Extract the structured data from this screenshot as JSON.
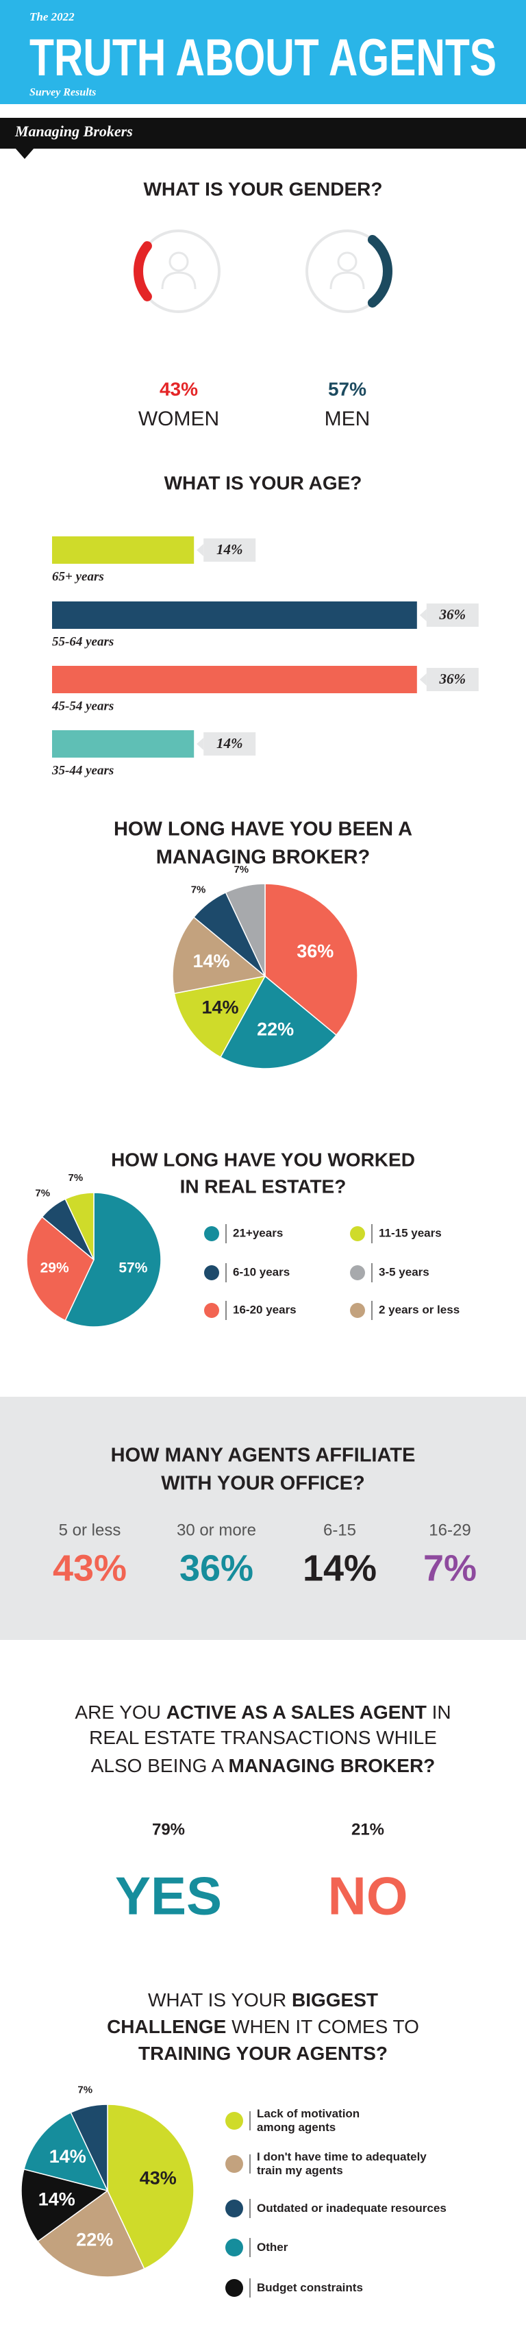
{
  "header": {
    "kicker": "The 2022",
    "title": "TRUTH ABOUT AGENTS",
    "subtitle": "Survey Results",
    "section": "Managing Brokers"
  },
  "chart_data": [
    {
      "type": "gauge",
      "title": [
        "WHAT IS YOUR GENDER?"
      ],
      "categories": [
        "WOMEN",
        "MEN"
      ],
      "values": [
        43,
        57
      ],
      "value_labels": [
        "43%",
        "57%"
      ],
      "colors": [
        "#e42527",
        "#1c4a5f"
      ]
    },
    {
      "type": "bar",
      "title": [
        "WHAT IS YOUR AGE?"
      ],
      "categories": [
        "65+ years",
        "55-64 years",
        "45-54 years",
        "35-44 years"
      ],
      "values": [
        14,
        36,
        36,
        14
      ],
      "value_labels": [
        "14%",
        "36%",
        "36%",
        "14%"
      ],
      "colors": [
        "#cfdb2a",
        "#1d4a6b",
        "#f26452",
        "#5fbfb5"
      ]
    },
    {
      "type": "pie",
      "title": [
        "HOW LONG HAVE YOU BEEN A",
        "MANAGING BROKER?"
      ],
      "values": [
        36,
        22,
        14,
        14,
        7,
        7
      ],
      "value_labels": [
        "36%",
        "22%",
        "14%",
        "14%",
        "7%",
        "7%"
      ],
      "colors": [
        "#f26452",
        "#168d9c",
        "#cfdb2a",
        "#c3a27e",
        "#1d4a6b",
        "#a7a9ac"
      ]
    },
    {
      "type": "pie",
      "title": [
        "HOW LONG HAVE YOU WORKED",
        "IN REAL ESTATE?"
      ],
      "categories": [
        "21+years",
        "16-20 years",
        "6-10 years",
        "11-15 years",
        "3-5 years",
        "2 years or less"
      ],
      "values": [
        57,
        29,
        7,
        7,
        null,
        null
      ],
      "value_labels": [
        "57%",
        "29%",
        "7%",
        "7%",
        null,
        null
      ],
      "colors": [
        "#168d9c",
        "#f26452",
        "#1d4a6b",
        "#cfdb2a",
        "#a7a9ac",
        "#c3a27e"
      ]
    },
    {
      "type": "stat",
      "title": [
        "HOW MANY AGENTS AFFILIATE",
        "WITH YOUR OFFICE?"
      ],
      "categories": [
        "5 or less",
        "30 or more",
        "6-15",
        "16-29"
      ],
      "values": [
        43,
        36,
        14,
        7
      ],
      "value_labels": [
        "43%",
        "36%",
        "14%",
        "7%"
      ],
      "colors": [
        "#f26452",
        "#168d9c",
        "#231f20",
        "#8e4a9e"
      ]
    },
    {
      "type": "answer",
      "title": [
        [
          {
            "text": "ARE YOU ",
            "bold": false
          },
          {
            "text": "ACTIVE AS A SALES AGENT",
            "bold": true
          },
          {
            "text": " IN",
            "bold": false
          }
        ],
        [
          {
            "text": "REAL ESTATE TRANSACTIONS WHILE",
            "bold": false
          }
        ],
        [
          {
            "text": "ALSO BEING A ",
            "bold": false
          },
          {
            "text": "MANAGING BROKER?",
            "bold": true
          }
        ]
      ],
      "categories": [
        "YES",
        "NO"
      ],
      "values": [
        79,
        21
      ],
      "value_labels": [
        "79%",
        "21%"
      ],
      "colors": [
        "#168d9c",
        "#f26452"
      ]
    },
    {
      "type": "pie",
      "title": [
        [
          {
            "text": "WHAT IS YOUR ",
            "bold": false
          },
          {
            "text": "BIGGEST",
            "bold": true
          }
        ],
        [
          {
            "text": "CHALLENGE",
            "bold": true
          },
          {
            "text": " WHEN IT COMES TO",
            "bold": false
          }
        ],
        [
          {
            "text": "TRAINING YOUR AGENTS?",
            "bold": true
          }
        ]
      ],
      "categories": [
        "Lack of motivation among agents",
        "I don't have time to adequately train my agents",
        "Budget constraints",
        "Other",
        "Outdated or inadequate resources"
      ],
      "values": [
        43,
        22,
        14,
        14,
        7
      ],
      "value_labels": [
        "43%",
        "22%",
        "14%",
        "14%",
        "7%"
      ],
      "colors": [
        "#cfdb2a",
        "#c3a27e",
        "#111111",
        "#168d9c",
        "#1d4a6b"
      ]
    }
  ]
}
